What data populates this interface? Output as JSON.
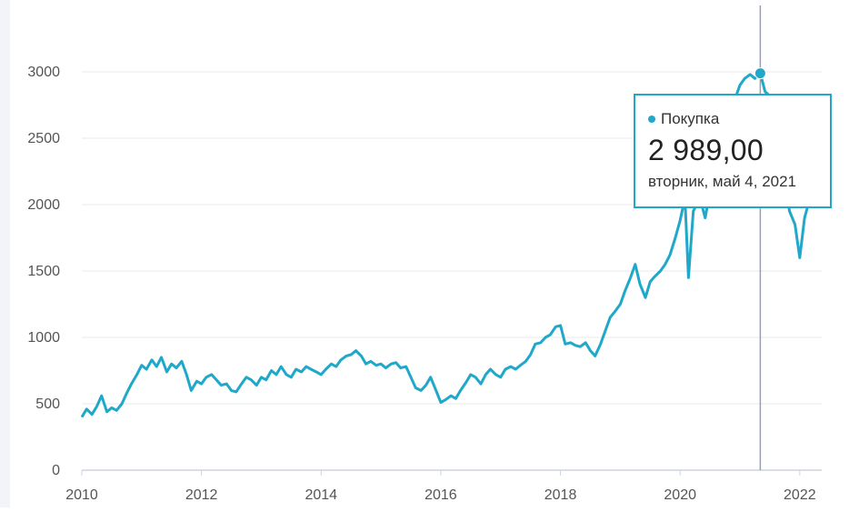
{
  "chart_data": {
    "type": "line",
    "title": "",
    "xlabel": "",
    "ylabel": "",
    "ylim": [
      0,
      3300
    ],
    "y_ticks": [
      0,
      500,
      1000,
      1500,
      2000,
      2500,
      3000
    ],
    "x_ticks": [
      2010,
      2012,
      2014,
      2016,
      2018,
      2020,
      2022
    ],
    "xlim": [
      2010.0,
      2022.2
    ],
    "grid": true,
    "colors": {
      "line": "#1fa8c9",
      "grid": "#e6e8ee",
      "axis": "#cdd3e0",
      "crosshair": "#9aa0ab",
      "tick_text": "#555555"
    },
    "series": [
      {
        "name": "Покупка",
        "points": [
          [
            2010.0,
            400
          ],
          [
            2010.08,
            460
          ],
          [
            2010.17,
            420
          ],
          [
            2010.25,
            480
          ],
          [
            2010.33,
            560
          ],
          [
            2010.42,
            440
          ],
          [
            2010.5,
            470
          ],
          [
            2010.58,
            450
          ],
          [
            2010.67,
            500
          ],
          [
            2010.75,
            580
          ],
          [
            2010.83,
            650
          ],
          [
            2010.92,
            720
          ],
          [
            2011.0,
            790
          ],
          [
            2011.08,
            760
          ],
          [
            2011.17,
            830
          ],
          [
            2011.25,
            780
          ],
          [
            2011.33,
            850
          ],
          [
            2011.42,
            740
          ],
          [
            2011.5,
            800
          ],
          [
            2011.58,
            770
          ],
          [
            2011.67,
            820
          ],
          [
            2011.75,
            720
          ],
          [
            2011.83,
            600
          ],
          [
            2011.92,
            670
          ],
          [
            2012.0,
            650
          ],
          [
            2012.08,
            700
          ],
          [
            2012.17,
            720
          ],
          [
            2012.25,
            680
          ],
          [
            2012.33,
            640
          ],
          [
            2012.42,
            650
          ],
          [
            2012.5,
            600
          ],
          [
            2012.58,
            590
          ],
          [
            2012.67,
            650
          ],
          [
            2012.75,
            700
          ],
          [
            2012.83,
            680
          ],
          [
            2012.92,
            640
          ],
          [
            2013.0,
            700
          ],
          [
            2013.08,
            680
          ],
          [
            2013.17,
            750
          ],
          [
            2013.25,
            720
          ],
          [
            2013.33,
            780
          ],
          [
            2013.42,
            720
          ],
          [
            2013.5,
            700
          ],
          [
            2013.58,
            760
          ],
          [
            2013.67,
            740
          ],
          [
            2013.75,
            780
          ],
          [
            2013.83,
            760
          ],
          [
            2013.92,
            740
          ],
          [
            2014.0,
            720
          ],
          [
            2014.08,
            760
          ],
          [
            2014.17,
            800
          ],
          [
            2014.25,
            780
          ],
          [
            2014.33,
            830
          ],
          [
            2014.42,
            860
          ],
          [
            2014.5,
            870
          ],
          [
            2014.58,
            900
          ],
          [
            2014.67,
            860
          ],
          [
            2014.75,
            800
          ],
          [
            2014.83,
            820
          ],
          [
            2014.92,
            790
          ],
          [
            2015.0,
            800
          ],
          [
            2015.08,
            770
          ],
          [
            2015.17,
            800
          ],
          [
            2015.25,
            810
          ],
          [
            2015.33,
            770
          ],
          [
            2015.42,
            780
          ],
          [
            2015.5,
            700
          ],
          [
            2015.58,
            620
          ],
          [
            2015.67,
            600
          ],
          [
            2015.75,
            640
          ],
          [
            2015.83,
            700
          ],
          [
            2015.92,
            600
          ],
          [
            2016.0,
            510
          ],
          [
            2016.08,
            530
          ],
          [
            2016.17,
            560
          ],
          [
            2016.25,
            540
          ],
          [
            2016.33,
            600
          ],
          [
            2016.42,
            660
          ],
          [
            2016.5,
            720
          ],
          [
            2016.58,
            700
          ],
          [
            2016.67,
            650
          ],
          [
            2016.75,
            720
          ],
          [
            2016.83,
            760
          ],
          [
            2016.92,
            720
          ],
          [
            2017.0,
            700
          ],
          [
            2017.08,
            760
          ],
          [
            2017.17,
            780
          ],
          [
            2017.25,
            760
          ],
          [
            2017.33,
            790
          ],
          [
            2017.42,
            820
          ],
          [
            2017.5,
            870
          ],
          [
            2017.58,
            950
          ],
          [
            2017.67,
            960
          ],
          [
            2017.75,
            1000
          ],
          [
            2017.83,
            1020
          ],
          [
            2017.92,
            1080
          ],
          [
            2018.0,
            1090
          ],
          [
            2018.08,
            950
          ],
          [
            2018.17,
            960
          ],
          [
            2018.25,
            940
          ],
          [
            2018.33,
            930
          ],
          [
            2018.42,
            960
          ],
          [
            2018.5,
            900
          ],
          [
            2018.58,
            860
          ],
          [
            2018.67,
            950
          ],
          [
            2018.75,
            1050
          ],
          [
            2018.83,
            1150
          ],
          [
            2018.92,
            1200
          ],
          [
            2019.0,
            1250
          ],
          [
            2019.08,
            1350
          ],
          [
            2019.17,
            1450
          ],
          [
            2019.25,
            1550
          ],
          [
            2019.33,
            1400
          ],
          [
            2019.42,
            1300
          ],
          [
            2019.5,
            1420
          ],
          [
            2019.58,
            1460
          ],
          [
            2019.67,
            1500
          ],
          [
            2019.75,
            1550
          ],
          [
            2019.83,
            1620
          ],
          [
            2019.92,
            1750
          ],
          [
            2020.0,
            1880
          ],
          [
            2020.08,
            2050
          ],
          [
            2020.14,
            1450
          ],
          [
            2020.22,
            1950
          ],
          [
            2020.33,
            2050
          ],
          [
            2020.42,
            1900
          ],
          [
            2020.5,
            2100
          ],
          [
            2020.58,
            2300
          ],
          [
            2020.67,
            2500
          ],
          [
            2020.75,
            2600
          ],
          [
            2020.83,
            2700
          ],
          [
            2020.92,
            2800
          ],
          [
            2021.0,
            2900
          ],
          [
            2021.08,
            2950
          ],
          [
            2021.17,
            2980
          ],
          [
            2021.25,
            2950
          ],
          [
            2021.34,
            2989
          ],
          [
            2021.42,
            2850
          ],
          [
            2021.5,
            2820
          ],
          [
            2021.58,
            2700
          ],
          [
            2021.67,
            2450
          ],
          [
            2021.75,
            2150
          ],
          [
            2021.83,
            1950
          ],
          [
            2021.92,
            1850
          ],
          [
            2022.0,
            1600
          ],
          [
            2022.08,
            1900
          ],
          [
            2022.14,
            2000
          ]
        ]
      }
    ],
    "highlight": {
      "x": 2021.34,
      "y": 2989
    }
  },
  "tooltip": {
    "series_name": "Покупка",
    "value": "2 989,00",
    "date": "вторник, май 4, 2021",
    "color": "#1fa8c9"
  }
}
